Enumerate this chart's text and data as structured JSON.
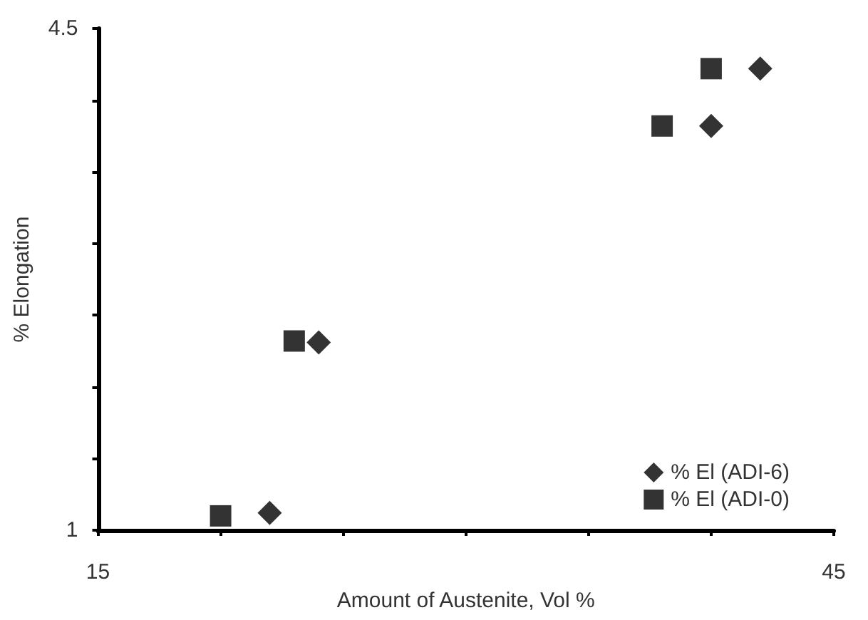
{
  "chart_data": {
    "type": "scatter",
    "xlabel": "Amount of Austenite, Vol %",
    "ylabel": "% Elongation",
    "xlim": [
      15,
      45
    ],
    "xticks": [
      15,
      {
        "value": 20,
        "label": null
      },
      {
        "value": 25,
        "label": null
      },
      {
        "value": 30,
        "label": null
      },
      {
        "value": 35,
        "label": null
      },
      {
        "value": 40,
        "label": null
      },
      45
    ],
    "ylim": [
      1,
      4.5
    ],
    "yticks": [
      1,
      {
        "value": 1.5,
        "label": null
      },
      {
        "value": 2,
        "label": null
      },
      {
        "value": 2.5,
        "label": null
      },
      {
        "value": 3,
        "label": null
      },
      {
        "value": 3.5,
        "label": null
      },
      {
        "value": 4,
        "label": null
      },
      4.5
    ],
    "grid": false,
    "legend": "bottom right",
    "series": [
      {
        "name": "% El (ADI-6)",
        "color": "#000000",
        "marker": "diamond",
        "x": [
          22,
          24,
          40,
          42
        ],
        "values": [
          1.12,
          2.31,
          3.82,
          4.22
        ]
      },
      {
        "name": "% El (ADI-0)",
        "color": "#000000",
        "marker": "square",
        "x": [
          20,
          23,
          38,
          40
        ],
        "values": [
          1.1,
          2.32,
          3.82,
          4.22
        ]
      }
    ]
  }
}
